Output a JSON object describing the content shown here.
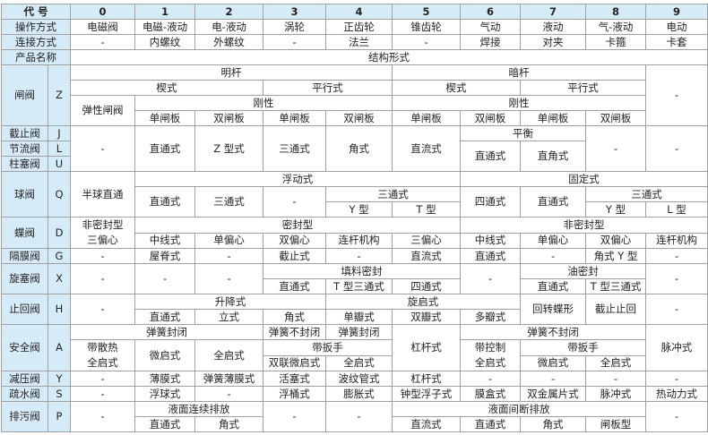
{
  "header": {
    "code_label": "代 号",
    "columns": [
      "0",
      "1",
      "2",
      "3",
      "4",
      "5",
      "6",
      "7",
      "8",
      "9"
    ]
  },
  "operation": {
    "label": "操作方式",
    "values": [
      "电磁阀",
      "电磁-液动",
      "电-液动",
      "涡轮",
      "正齿轮",
      "锥齿轮",
      "气动",
      "液动",
      "气-液动",
      "电动"
    ]
  },
  "connection": {
    "label": "连接方式",
    "values": [
      "-",
      "内螺纹",
      "外螺纹",
      "-",
      "法兰",
      "-",
      "焊接",
      "对夹",
      "卡箍",
      "卡套"
    ]
  },
  "product": {
    "label": "产品名称",
    "structure_label": "结构形式"
  },
  "gate": {
    "name": "闸阀",
    "code": "Z",
    "cells": [
      "明杆",
      "暗杆",
      "-",
      "楔式",
      "平行式",
      "楔式",
      "平行式",
      "弹性闸阀",
      "刚性",
      "刚性",
      "单闸板",
      "双闸板",
      "单闸板",
      "双闸板",
      "单闸板",
      "双闸板",
      "单闸板",
      "双闸板"
    ]
  },
  "globe_group": {
    "valves": [
      {
        "name": "截止阀",
        "code": "J"
      },
      {
        "name": "节流阀",
        "code": "L"
      },
      {
        "name": "柱塞阀",
        "code": "U"
      }
    ],
    "cells": [
      "-",
      "直通式",
      "Z 型式",
      "三通式",
      "角式",
      "直流式",
      "平衡",
      "-",
      "-",
      "直通式",
      "直角式"
    ]
  },
  "ball": {
    "name": "球阀",
    "code": "Q",
    "cells": [
      "半球直通",
      "浮动式",
      "固定式",
      "直通式",
      "三通式",
      "-",
      "三通式",
      "四通式",
      "直通式",
      "三通式",
      "Y 型",
      "T 型",
      "Y 型",
      "L 型"
    ]
  },
  "butterfly": {
    "name": "蝶阀",
    "code": "D",
    "cells": [
      "非密封型",
      "三偏心",
      "密封型",
      "非密封型",
      "中线式",
      "单偏心",
      "双偏心",
      "连杆机构",
      "三偏心",
      "中线式",
      "单偏心",
      "双偏心",
      "连杆机构"
    ]
  },
  "diaphragm": {
    "name": "隔膜阀",
    "code": "G",
    "cells": [
      "-",
      "屋脊式",
      "-",
      "截止式",
      "-",
      "直流式",
      "直通式",
      "-",
      "角式 Y 型",
      "-"
    ]
  },
  "plug": {
    "name": "旋塞阀",
    "code": "X",
    "cells": [
      "-",
      "-",
      "-",
      "填料密封",
      "-",
      "油密封",
      "-",
      "直通式",
      "T 型三通式",
      "四通式",
      "直通式",
      "T 型三通式"
    ]
  },
  "check": {
    "name": "止回阀",
    "code": "H",
    "cells": [
      "-",
      "升降式",
      "旋启式",
      "回转蝶形",
      "截止止回",
      "-",
      "直通式",
      "立式",
      "角式",
      "单瓣式",
      "双瓣式",
      "多瓣式"
    ]
  },
  "safety": {
    "name": "安全阀",
    "code": "A",
    "cells": [
      "弹簧封闭",
      "弹簧不封闭",
      "弹簧封闭",
      "杠杆式",
      "弹簧不封闭",
      "脉冲式",
      "带散热",
      "全启式",
      "微启式",
      "全启式",
      "带扳手",
      "带控制",
      "全启式",
      "带扳手",
      "双联微启式",
      "全启式",
      "微启式",
      "全启式"
    ]
  },
  "reducing": {
    "name": "减压阀",
    "code": "Y",
    "cells": [
      "-",
      "薄膜式",
      "弹簧薄膜式",
      "活塞式",
      "波纹管式",
      "杠杆式",
      "-",
      "-",
      "-",
      "-"
    ]
  },
  "trap": {
    "name": "疏水阀",
    "code": "S",
    "cells": [
      "-",
      "浮球式",
      "-",
      "浮桶式",
      "膨胀式",
      "钟型浮子式",
      "膜盒式",
      "双金属片式",
      "脉冲式",
      "热动力式"
    ]
  },
  "blowdown": {
    "name": "排污阀",
    "code": "P",
    "cells": [
      "-",
      "液面连续排放",
      "-",
      "-",
      "液面间断排放",
      "-",
      "直通式",
      "角式",
      "直流式",
      "直通式",
      "角式",
      "闸板型"
    ]
  }
}
